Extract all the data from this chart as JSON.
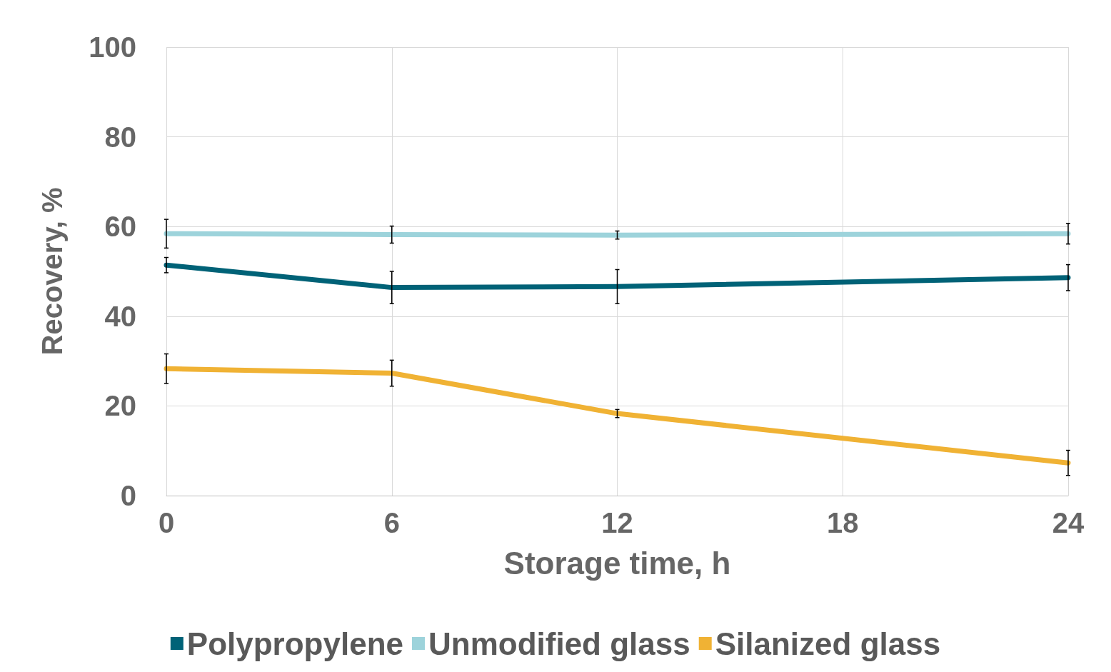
{
  "chart_data": {
    "type": "line",
    "xlabel": "Storage time, h",
    "ylabel": "Recovery, %",
    "x": [
      0,
      6,
      12,
      24
    ],
    "series": [
      {
        "name": "Polypropylene",
        "color": "#006277",
        "values": [
          51.4,
          46.4,
          46.6,
          48.6
        ],
        "errors": [
          1.7,
          3.6,
          3.8,
          2.9
        ]
      },
      {
        "name": "Unmodified glass",
        "color": "#9dd3db",
        "values": [
          58.4,
          58.2,
          58.1,
          58.4
        ],
        "errors": [
          3.2,
          1.9,
          0.9,
          2.3
        ]
      },
      {
        "name": "Silanized glass",
        "color": "#f0b234",
        "values": [
          28.3,
          27.3,
          18.3,
          7.3
        ],
        "errors": [
          3.3,
          2.9,
          0.9,
          2.8
        ]
      }
    ],
    "xlim": [
      0,
      24
    ],
    "xticks": [
      0,
      6,
      12,
      18,
      24
    ],
    "ylim": [
      0,
      100
    ],
    "yticks": [
      0,
      20,
      40,
      60,
      80,
      100
    ],
    "grid": true,
    "legend": "bottom",
    "marker": "none",
    "line_style": "solid"
  }
}
